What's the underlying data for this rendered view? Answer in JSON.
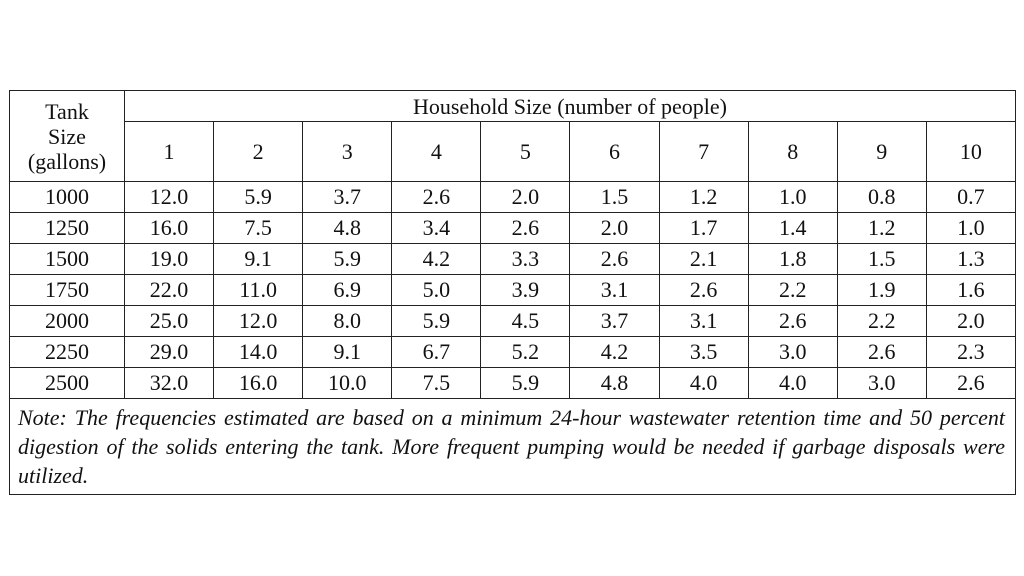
{
  "table": {
    "tank_header": "Tank Size (gallons)",
    "household_header": "Household Size (number of people)",
    "columns": [
      "1",
      "2",
      "3",
      "4",
      "5",
      "6",
      "7",
      "8",
      "9",
      "10"
    ],
    "rows": [
      {
        "tank": "1000",
        "values": [
          "12.0",
          "5.9",
          "3.7",
          "2.6",
          "2.0",
          "1.5",
          "1.2",
          "1.0",
          "0.8",
          "0.7"
        ]
      },
      {
        "tank": "1250",
        "values": [
          "16.0",
          "7.5",
          "4.8",
          "3.4",
          "2.6",
          "2.0",
          "1.7",
          "1.4",
          "1.2",
          "1.0"
        ]
      },
      {
        "tank": "1500",
        "values": [
          "19.0",
          "9.1",
          "5.9",
          "4.2",
          "3.3",
          "2.6",
          "2.1",
          "1.8",
          "1.5",
          "1.3"
        ]
      },
      {
        "tank": "1750",
        "values": [
          "22.0",
          "11.0",
          "6.9",
          "5.0",
          "3.9",
          "3.1",
          "2.6",
          "2.2",
          "1.9",
          "1.6"
        ]
      },
      {
        "tank": "2000",
        "values": [
          "25.0",
          "12.0",
          "8.0",
          "5.9",
          "4.5",
          "3.7",
          "3.1",
          "2.6",
          "2.2",
          "2.0"
        ]
      },
      {
        "tank": "2250",
        "values": [
          "29.0",
          "14.0",
          "9.1",
          "6.7",
          "5.2",
          "4.2",
          "3.5",
          "3.0",
          "2.6",
          "2.3"
        ]
      },
      {
        "tank": "2500",
        "values": [
          "32.0",
          "16.0",
          "10.0",
          "7.5",
          "5.9",
          "4.8",
          "4.0",
          "4.0",
          "3.0",
          "2.6"
        ]
      }
    ],
    "note": "Note: The frequencies estimated are based on a minimum 24-hour wastewater retention time and 50 percent digestion of the solids entering the tank. More frequent pumping would be needed if garbage disposals were utilized."
  }
}
